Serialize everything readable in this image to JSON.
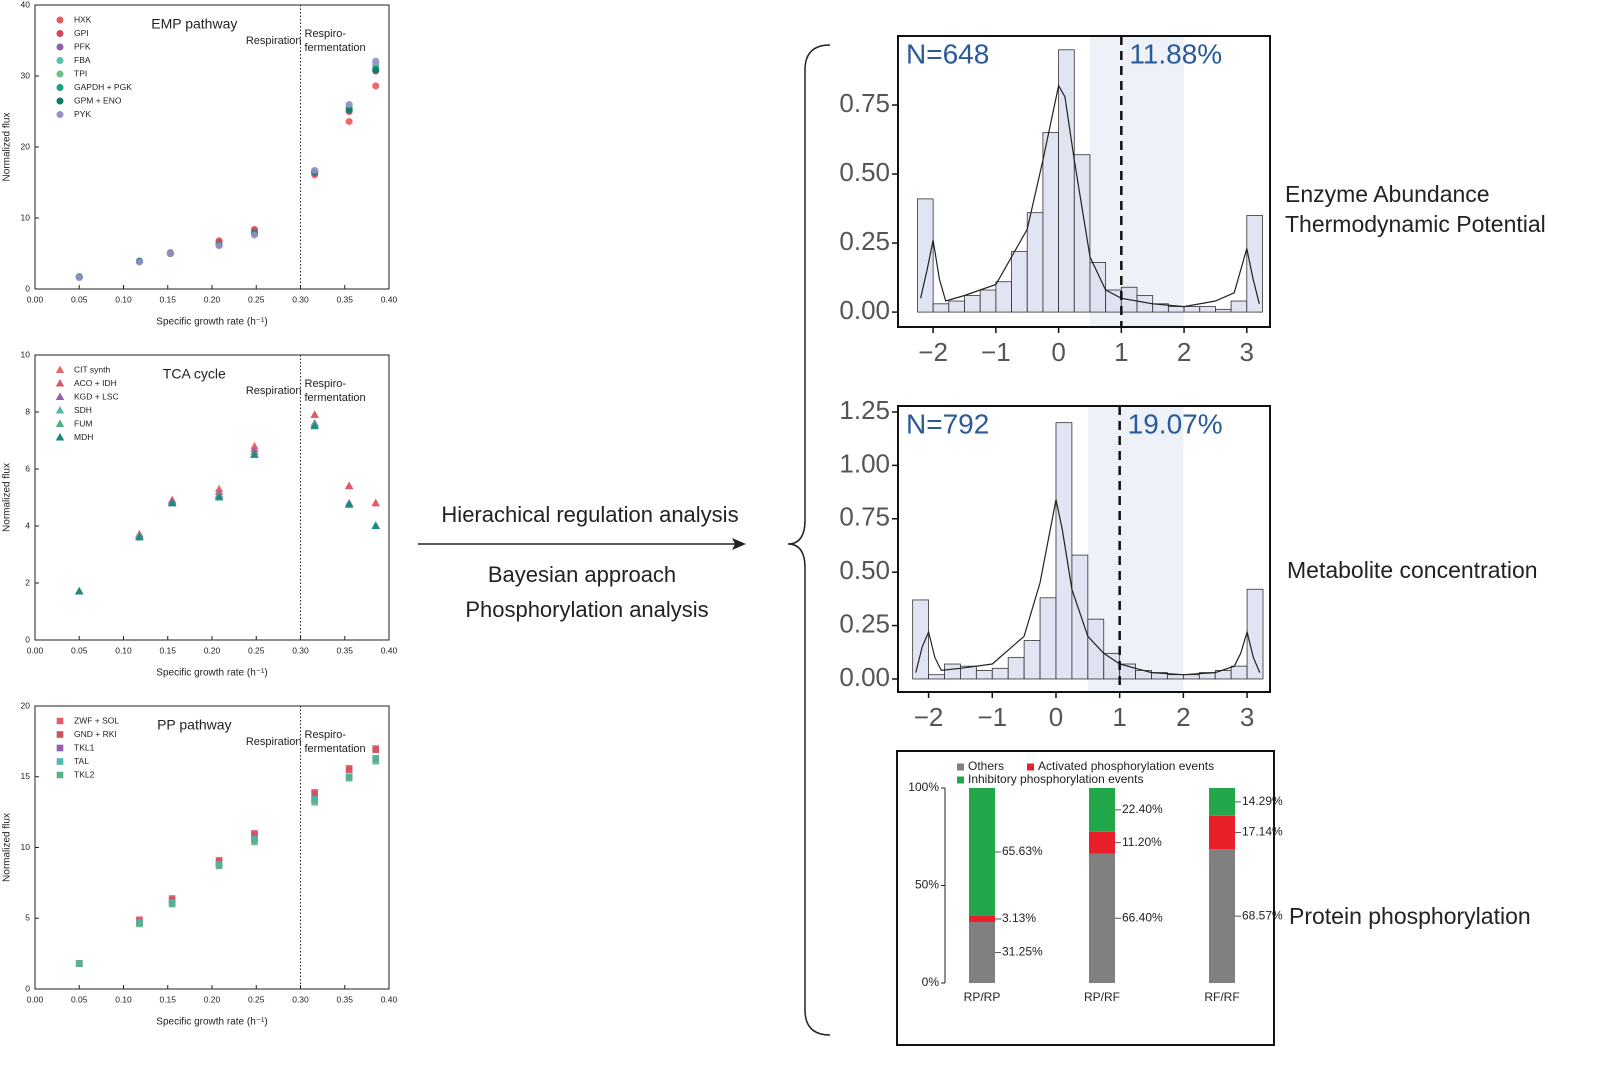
{
  "labels": {
    "arrow_top": "Hierachical regulation analysis",
    "arrow_bottom_1": "Bayesian approach",
    "arrow_bottom_2": "Phosphorylation analysis",
    "panel_1_line_1": "Enzyme Abundance",
    "panel_1_line_2": "Thermodynamic Potential",
    "panel_2": "Metabolite concentration",
    "panel_3": "Protein phosphorylation"
  },
  "chart_data": [
    {
      "type": "scatter",
      "marker": "circle",
      "title": "EMP pathway",
      "title_color": "#e0474c",
      "x_label": "Specific growth rate (h⁻¹)",
      "y_label": "Normalized flux",
      "annotations": [
        "Respiration",
        "Respiro-",
        "fermentation"
      ],
      "divider": 0.3,
      "x": [
        0.05,
        0.118,
        0.153,
        0.208,
        0.248,
        0.316,
        0.355,
        0.385
      ],
      "series": [
        {
          "name": "HXK",
          "color": "#e8585a",
          "values": [
            1.7,
            3.9,
            5.1,
            6.8,
            8.4,
            16.1,
            23.6,
            28.6
          ]
        },
        {
          "name": "GPI",
          "color": "#d0485a",
          "values": [
            1.7,
            3.9,
            5.1,
            6.6,
            8.2,
            16.3,
            25.0,
            30.7
          ]
        },
        {
          "name": "PFK",
          "color": "#8e5fb0",
          "values": [
            1.7,
            3.9,
            5.0,
            6.3,
            7.9,
            16.5,
            25.5,
            31.5
          ]
        },
        {
          "name": "FBA",
          "color": "#5bbfb0",
          "values": [
            1.7,
            3.9,
            5.0,
            6.2,
            7.8,
            16.6,
            25.8,
            31.8
          ]
        },
        {
          "name": "TPI",
          "color": "#6cc08a",
          "values": [
            1.7,
            3.9,
            5.0,
            6.2,
            7.8,
            16.6,
            25.6,
            31.2
          ]
        },
        {
          "name": "GAPDH + PGK",
          "color": "#1aa080",
          "values": [
            1.7,
            3.9,
            5.0,
            6.2,
            7.8,
            16.6,
            25.3,
            31.0
          ]
        },
        {
          "name": "GPM + ENO",
          "color": "#137a6a",
          "values": [
            1.7,
            3.9,
            5.0,
            6.2,
            7.8,
            16.5,
            25.2,
            30.8
          ]
        },
        {
          "name": "PYK",
          "color": "#9a90c8",
          "values": [
            1.6,
            3.8,
            5.0,
            6.1,
            7.6,
            16.7,
            26.0,
            32.1
          ]
        }
      ],
      "xlim": [
        0,
        0.4
      ],
      "xticks": [
        {
          "value": 0,
          "label": "0.00"
        },
        {
          "value": 0.05,
          "label": "0.05"
        },
        {
          "value": 0.1,
          "label": "0.10"
        },
        {
          "value": 0.15,
          "label": "0.15"
        },
        {
          "value": 0.2,
          "label": "0.20"
        },
        {
          "value": 0.25,
          "label": "0.25"
        },
        {
          "value": 0.3,
          "label": "0.30"
        },
        {
          "value": 0.35,
          "label": "0.35"
        },
        {
          "value": 0.4,
          "label": "0.40"
        }
      ],
      "ylim": [
        0,
        40
      ],
      "yticks": [
        0,
        10,
        20,
        30,
        40
      ]
    },
    {
      "type": "scatter",
      "marker": "triangle",
      "title": "TCA cycle",
      "title_color": "#45b5b8",
      "x_label": "Specific growth rate (h⁻¹)",
      "y_label": "Normalized flux",
      "annotations": [
        "Respiration",
        "Respiro-",
        "fermentation"
      ],
      "divider": 0.3,
      "x": [
        0.05,
        0.118,
        0.155,
        0.208,
        0.248,
        0.316,
        0.355,
        0.385
      ],
      "series": [
        {
          "name": "CIT synth",
          "color": "#e86868",
          "values": [
            1.7,
            3.7,
            4.9,
            5.3,
            6.8,
            7.9,
            5.4,
            4.8
          ]
        },
        {
          "name": "ACO + IDH",
          "color": "#d85868",
          "values": [
            1.7,
            3.7,
            4.9,
            5.2,
            6.7,
            7.9,
            5.4,
            4.8
          ]
        },
        {
          "name": "KGD + LSC",
          "color": "#9060b0",
          "values": [
            1.7,
            3.65,
            4.85,
            5.1,
            6.6,
            7.6,
            4.8,
            4.0
          ]
        },
        {
          "name": "SDH",
          "color": "#50b8b0",
          "values": [
            1.7,
            3.65,
            4.8,
            5.05,
            6.5,
            7.55,
            4.75,
            4.0
          ]
        },
        {
          "name": "FUM",
          "color": "#50b080",
          "values": [
            1.7,
            3.6,
            4.8,
            5.05,
            6.5,
            7.55,
            4.75,
            4.0
          ]
        },
        {
          "name": "MDH",
          "color": "#128880",
          "values": [
            1.7,
            3.6,
            4.8,
            5.0,
            6.5,
            7.5,
            4.75,
            4.0
          ]
        }
      ],
      "xlim": [
        0,
        0.4
      ],
      "xticks": [
        {
          "value": 0,
          "label": "0.00"
        },
        {
          "value": 0.05,
          "label": "0.05"
        },
        {
          "value": 0.1,
          "label": "0.10"
        },
        {
          "value": 0.15,
          "label": "0.15"
        },
        {
          "value": 0.2,
          "label": "0.20"
        },
        {
          "value": 0.25,
          "label": "0.25"
        },
        {
          "value": 0.3,
          "label": "0.30"
        },
        {
          "value": 0.35,
          "label": "0.35"
        },
        {
          "value": 0.4,
          "label": "0.40"
        }
      ],
      "ylim": [
        0,
        10
      ],
      "yticks": [
        0,
        2,
        4,
        6,
        8,
        10
      ]
    },
    {
      "type": "scatter",
      "marker": "square",
      "title": "PP pathway",
      "title_color": "#a45aa8",
      "x_label": "Specific growth rate (h⁻¹)",
      "y_label": "Normalized flux",
      "annotations": [
        "Respiration",
        "Respiro-",
        "fermentation"
      ],
      "divider": 0.3,
      "x": [
        0.05,
        0.118,
        0.155,
        0.208,
        0.248,
        0.316,
        0.355,
        0.385
      ],
      "series": [
        {
          "name": "ZWF + SOL",
          "color": "#e06070",
          "values": [
            1.8,
            4.9,
            6.4,
            9.1,
            11.0,
            13.9,
            15.6,
            17.0
          ]
        },
        {
          "name": "GND + RKI",
          "color": "#d05060",
          "values": [
            1.8,
            4.8,
            6.3,
            9.0,
            10.9,
            13.8,
            15.5,
            16.9
          ]
        },
        {
          "name": "TKL1",
          "color": "#9060b0",
          "values": [
            1.8,
            4.7,
            6.1,
            8.8,
            10.6,
            13.4,
            15.0,
            16.3
          ]
        },
        {
          "name": "TAL",
          "color": "#50b8b0",
          "values": [
            1.8,
            4.7,
            6.1,
            8.8,
            10.6,
            13.4,
            15.0,
            16.3
          ]
        },
        {
          "name": "TKL2",
          "color": "#5ab088",
          "values": [
            1.8,
            4.6,
            6.0,
            8.7,
            10.4,
            13.2,
            14.9,
            16.1
          ]
        }
      ],
      "xlim": [
        0,
        0.4
      ],
      "xticks": [
        {
          "value": 0,
          "label": "0.00"
        },
        {
          "value": 0.05,
          "label": "0.05"
        },
        {
          "value": 0.1,
          "label": "0.10"
        },
        {
          "value": 0.15,
          "label": "0.15"
        },
        {
          "value": 0.2,
          "label": "0.20"
        },
        {
          "value": 0.25,
          "label": "0.25"
        },
        {
          "value": 0.3,
          "label": "0.30"
        },
        {
          "value": 0.35,
          "label": "0.35"
        },
        {
          "value": 0.4,
          "label": "0.40"
        }
      ],
      "ylim": [
        0,
        20
      ],
      "yticks": [
        0,
        5,
        10,
        15,
        20
      ]
    },
    {
      "type": "histogram",
      "color": "#d9ddef",
      "annotations": [
        "N=648",
        "11.88%"
      ],
      "highlight": [
        0.5,
        2
      ],
      "threshold": 1,
      "bins": [
        -2.25,
        -2,
        -1.75,
        -1.5,
        -1.25,
        -1,
        -0.75,
        -0.5,
        -0.25,
        0,
        0.25,
        0.5,
        0.75,
        1,
        1.25,
        1.5,
        1.75,
        2,
        2.25,
        2.5,
        2.75,
        3,
        3.25
      ],
      "counts": [
        0.41,
        0.03,
        0.04,
        0.06,
        0.08,
        0.11,
        0.22,
        0.36,
        0.65,
        0.95,
        0.57,
        0.18,
        0.08,
        0.09,
        0.06,
        0.03,
        0.02,
        0.02,
        0.02,
        0.01,
        0.04,
        0.35
      ],
      "curve": {
        "x": [
          -2.2,
          -2.1,
          -2,
          -1.9,
          -1.8,
          -1.5,
          -1,
          -0.5,
          -0.25,
          0,
          0.1,
          0.25,
          0.5,
          0.75,
          1,
          1.5,
          2,
          2.5,
          2.8,
          2.9,
          3,
          3.1,
          3.2
        ],
        "y": [
          0.05,
          0.15,
          0.26,
          0.12,
          0.04,
          0.06,
          0.1,
          0.3,
          0.55,
          0.82,
          0.78,
          0.55,
          0.2,
          0.08,
          0.05,
          0.03,
          0.02,
          0.04,
          0.07,
          0.15,
          0.23,
          0.12,
          0.03
        ]
      },
      "xlim": [
        -2.56,
        3.37
      ],
      "xticks": [
        {
          "value": -2,
          "label": "−2"
        },
        {
          "value": -1,
          "label": "−1"
        },
        0,
        1,
        2,
        3
      ],
      "ylim": [
        -0.054,
        1.0
      ],
      "yticks": [
        {
          "value": 0,
          "label": "0.00"
        },
        {
          "value": 0.25,
          "label": "0.25"
        },
        {
          "value": 0.5,
          "label": "0.50"
        },
        {
          "value": 0.75,
          "label": "0.75"
        }
      ]
    },
    {
      "type": "histogram",
      "color": "#d9ddef",
      "annotations": [
        "N=792",
        "19.07%"
      ],
      "highlight": [
        0.5,
        2
      ],
      "threshold": 1,
      "bins": [
        -2.25,
        -2,
        -1.75,
        -1.5,
        -1.25,
        -1,
        -0.75,
        -0.5,
        -0.25,
        0,
        0.25,
        0.5,
        0.75,
        1,
        1.25,
        1.5,
        1.75,
        2,
        2.25,
        2.5,
        2.75,
        3,
        3.25
      ],
      "counts": [
        0.37,
        0.02,
        0.07,
        0.06,
        0.04,
        0.05,
        0.1,
        0.18,
        0.38,
        1.2,
        0.58,
        0.28,
        0.12,
        0.07,
        0.04,
        0.03,
        0.02,
        0.02,
        0.03,
        0.04,
        0.06,
        0.42
      ],
      "curve": {
        "x": [
          -2.2,
          -2.1,
          -2,
          -1.9,
          -1.8,
          -1.5,
          -1,
          -0.5,
          -0.25,
          0,
          0.1,
          0.25,
          0.5,
          0.75,
          1,
          1.5,
          2,
          2.5,
          2.8,
          2.9,
          3,
          3.1,
          3.2
        ],
        "y": [
          0.03,
          0.15,
          0.22,
          0.1,
          0.04,
          0.05,
          0.07,
          0.2,
          0.45,
          0.84,
          0.7,
          0.42,
          0.2,
          0.12,
          0.07,
          0.03,
          0.02,
          0.03,
          0.06,
          0.12,
          0.22,
          0.1,
          0.03
        ]
      },
      "xlim": [
        -2.48,
        3.36
      ],
      "xticks": [
        {
          "value": -2,
          "label": "−2"
        },
        {
          "value": -1,
          "label": "−1"
        },
        0,
        1,
        2,
        3
      ],
      "ylim": [
        -0.061,
        1.278
      ],
      "yticks": [
        {
          "value": 0,
          "label": "0.00"
        },
        {
          "value": 0.25,
          "label": "0.25"
        },
        {
          "value": 0.5,
          "label": "0.50"
        },
        {
          "value": 0.75,
          "label": "0.75"
        },
        {
          "value": 1,
          "label": "1.00"
        },
        {
          "value": 1.25,
          "label": "1.25"
        }
      ]
    },
    {
      "type": "stacked-bar",
      "categories": [
        "RP/RP",
        "RP/RF",
        "RF/RF"
      ],
      "series": [
        {
          "name": "Others",
          "color": "#808080",
          "values": [
            31.25,
            66.4,
            68.57
          ],
          "value_labels": [
            "31.25%",
            "66.40%",
            "68.57%"
          ]
        },
        {
          "name": "Activated phosphorylation events",
          "color": "#e8202a",
          "values": [
            3.13,
            11.2,
            17.14
          ],
          "value_labels": [
            "3.13%",
            "11.20%",
            "17.14%"
          ]
        },
        {
          "name": "Inhibitory phosphorylation events",
          "color": "#22a84a",
          "values": [
            65.63,
            22.4,
            14.29
          ],
          "value_labels": [
            "65.63%",
            "22.40%",
            "14.29%"
          ]
        }
      ],
      "ylim": [
        0,
        100
      ],
      "yticks": [
        {
          "value": 0,
          "label": "0%"
        },
        {
          "value": 50,
          "label": "50%"
        },
        {
          "value": 100,
          "label": "100%"
        }
      ]
    }
  ]
}
